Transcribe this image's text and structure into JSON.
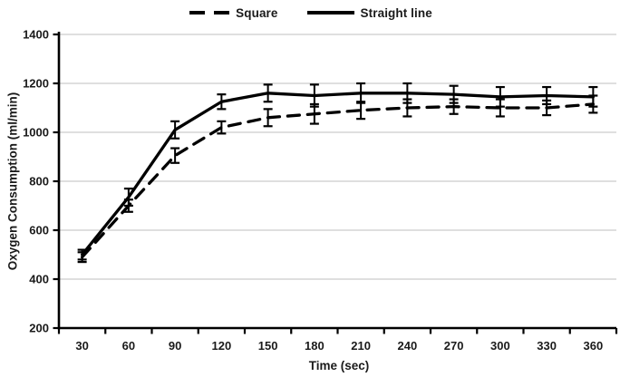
{
  "figure": {
    "background": "#ffffff",
    "line_color": "#000000",
    "gridline_color": "#bfbfbf",
    "text_color": "#1a1a1a"
  },
  "legend": {
    "position": "top-center",
    "items": [
      {
        "label": "Square",
        "style": "dashed"
      },
      {
        "label": "Straight line",
        "style": "solid"
      }
    ]
  },
  "chart_data": {
    "type": "line",
    "title": "",
    "xlabel": "Time (sec)",
    "ylabel": "Oxygen Consumption (ml/min)",
    "categories": [
      30,
      60,
      90,
      120,
      150,
      180,
      210,
      240,
      270,
      300,
      330,
      360
    ],
    "ylim": [
      200,
      1400
    ],
    "ytick_step": 200,
    "yticks": [
      200,
      400,
      600,
      800,
      1000,
      1200,
      1400
    ],
    "grid": true,
    "legend_position": "top-center",
    "series": [
      {
        "name": "Square",
        "line_style": "dashed",
        "color": "#000000",
        "values": [
          490,
          700,
          905,
          1020,
          1060,
          1075,
          1090,
          1100,
          1105,
          1100,
          1100,
          1115
        ],
        "error_bars": [
          20,
          25,
          30,
          25,
          35,
          40,
          35,
          35,
          30,
          35,
          30,
          35
        ]
      },
      {
        "name": "Straight line",
        "line_style": "solid",
        "color": "#000000",
        "values": [
          500,
          735,
          1010,
          1125,
          1160,
          1150,
          1160,
          1160,
          1155,
          1145,
          1150,
          1145
        ],
        "error_bars": [
          20,
          35,
          35,
          30,
          35,
          45,
          40,
          40,
          35,
          40,
          35,
          40
        ]
      }
    ]
  }
}
